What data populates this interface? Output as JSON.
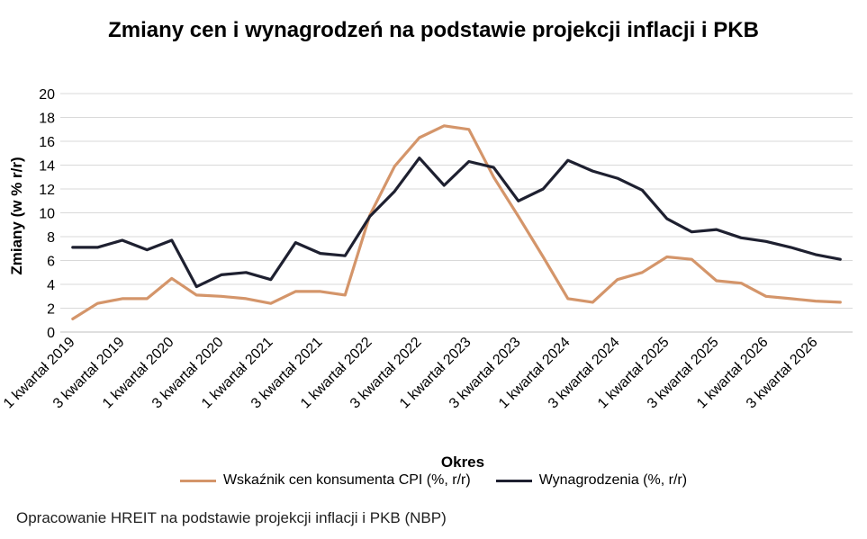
{
  "chart_data": {
    "type": "line",
    "title": "Zmiany cen i wynagrodzeń na podstawie projekcji inflacji i PKB",
    "xlabel": "Okres",
    "ylabel": "Zmiany (w % r/r)",
    "ylim": [
      0,
      20
    ],
    "yticks": [
      "0",
      "2",
      "4",
      "6",
      "8",
      "10",
      "12",
      "14",
      "16",
      "18",
      "20"
    ],
    "grid": true,
    "legend_position": "bottom",
    "x_tick_labels": [
      "1 kwartał 2019",
      "3 kwartał 2019",
      "1 kwartał 2020",
      "3 kwartał 2020",
      "1 kwartał 2021",
      "3 kwartał 2021",
      "1 kwartał 2022",
      "3 kwartał 2022",
      "1 kwartał 2023",
      "3 kwartał 2023",
      "1 kwartał 2024",
      "3 kwartał 2024",
      "1 kwartał 2025",
      "3 kwartał 2025",
      "1 kwartał 2026",
      "3 kwartał 2026"
    ],
    "series": [
      {
        "name": "Wskaźnik cen konsumenta CPI (%, r/r)",
        "color": "#d4956a",
        "values": [
          1.1,
          2.4,
          2.8,
          2.8,
          4.5,
          3.1,
          3.0,
          2.8,
          2.4,
          3.4,
          3.4,
          3.1,
          9.8,
          13.9,
          16.3,
          17.3,
          17.0,
          13.0,
          9.7,
          6.3,
          2.8,
          2.5,
          4.4,
          5.0,
          6.3,
          6.1,
          4.3,
          4.1,
          3.0,
          2.8,
          2.6,
          2.5
        ]
      },
      {
        "name": "Wynagrodzenia (%, r/r)",
        "color": "#1e2030",
        "values": [
          7.1,
          7.1,
          7.7,
          6.9,
          7.7,
          3.8,
          4.8,
          5.0,
          4.4,
          7.5,
          6.6,
          6.4,
          9.7,
          11.8,
          14.6,
          12.3,
          14.3,
          13.8,
          11.0,
          12.0,
          14.4,
          13.5,
          12.9,
          11.9,
          9.5,
          8.4,
          8.6,
          7.9,
          7.6,
          7.1,
          6.5,
          6.1
        ]
      }
    ]
  },
  "source_note": "Opracowanie HREIT na podstawie projekcji inflacji i PKB (NBP)"
}
